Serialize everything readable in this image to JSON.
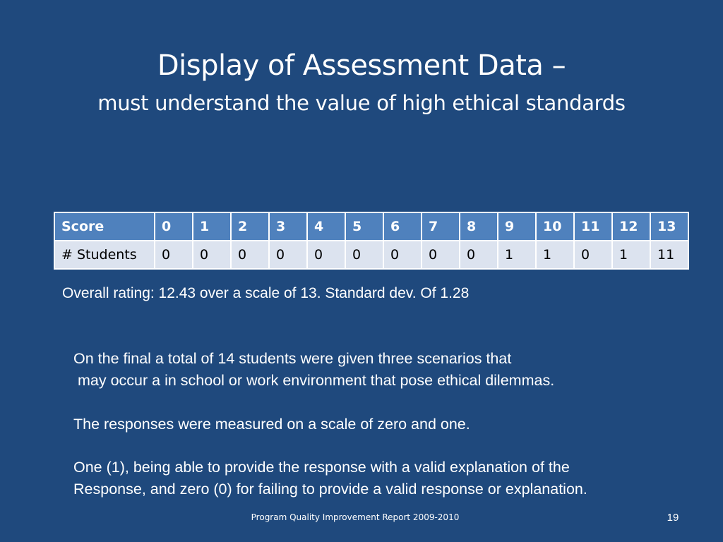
{
  "slide": {
    "title": "Display of Assessment Data –",
    "subtitle": "must understand the value of high ethical standards",
    "table": {
      "header_label": "Score",
      "row_label": "# Students",
      "scores": [
        "0",
        "1",
        "2",
        "3",
        "4",
        "5",
        "6",
        "7",
        "8",
        "9",
        "10",
        "11",
        "12",
        "13"
      ],
      "students": [
        "0",
        "0",
        "0",
        "0",
        "0",
        "0",
        "0",
        "0",
        "0",
        "1",
        "1",
        "0",
        "1",
        "11"
      ]
    },
    "rating": "Overall rating: 12.43 over a scale of 13. Standard dev. Of 1.28",
    "paragraphs": {
      "p1_line1": "On the final a total of 14 students were given three scenarios that",
      "p1_line2": "may occur a in school or work environment that pose ethical dilemmas.",
      "p2": "The responses were measured on a scale of zero and one.",
      "p3_line1": "One (1), being able to provide the response with a valid explanation of the",
      "p3_line2": "Response, and zero (0) for failing to provide a valid response or explanation."
    },
    "footer": "Program Quality Improvement Report 2009-2010",
    "page_number": "19"
  }
}
